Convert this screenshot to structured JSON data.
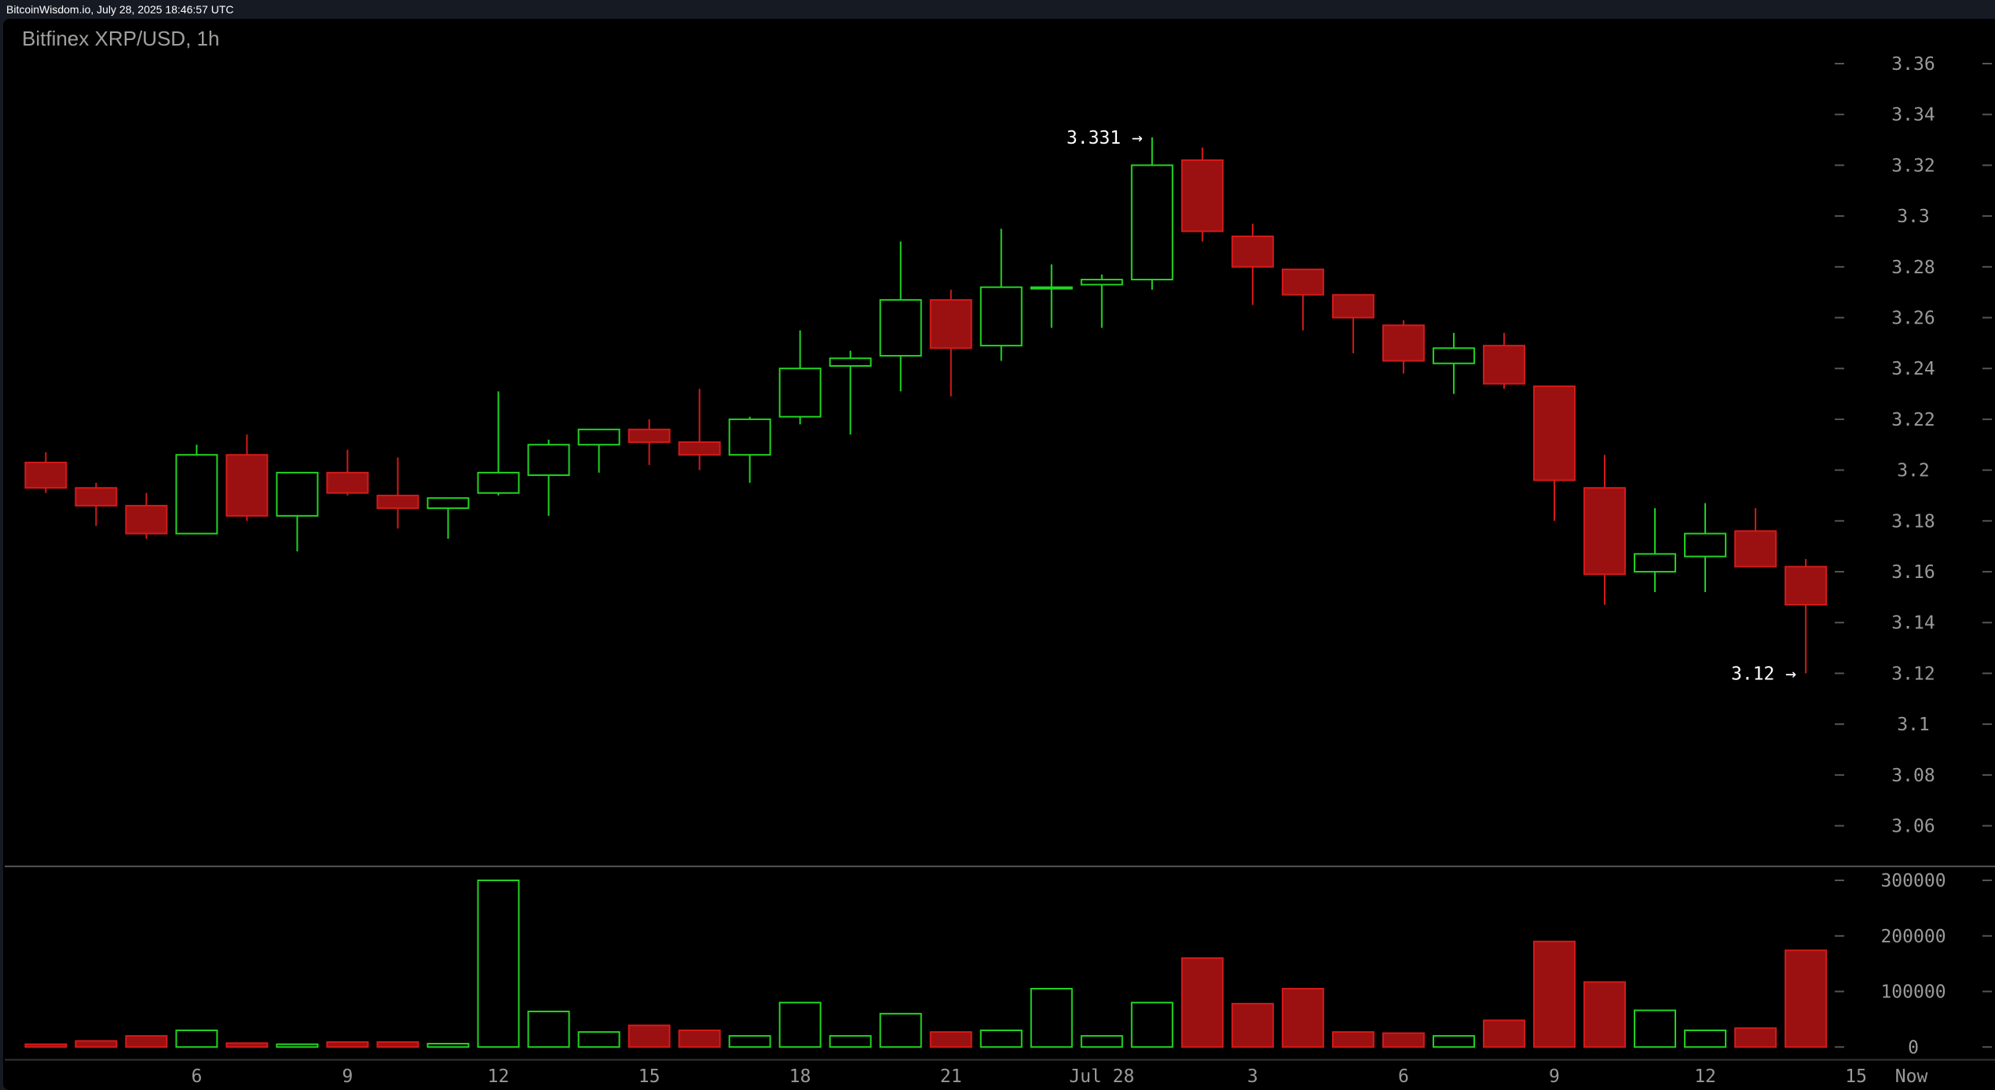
{
  "header": {
    "timestamp": "BitcoinWisdom.io, July 28, 2025 18:46:57 UTC",
    "title": "Bitfinex XRP/USD, 1h"
  },
  "colors": {
    "up": "#22d422",
    "down": "#d41a1a",
    "down_fill": "#9b1111",
    "background": "#000000",
    "axis_text": "#9a9a9a"
  },
  "chart_data": [
    {
      "type": "candlestick",
      "title": "Bitfinex XRP/USD, 1h",
      "ylim": [
        3.05,
        3.37
      ],
      "y_ticks": [
        "3.36",
        "3.34",
        "3.32",
        "3.3",
        "3.28",
        "3.26",
        "3.24",
        "3.22",
        "3.2",
        "3.18",
        "3.16",
        "3.14",
        "3.12",
        "3.1",
        "3.08",
        "3.06"
      ],
      "x_ticks": [
        {
          "label": "6",
          "index": 3
        },
        {
          "label": "9",
          "index": 6
        },
        {
          "label": "12",
          "index": 9
        },
        {
          "label": "15",
          "index": 12
        },
        {
          "label": "18",
          "index": 15
        },
        {
          "label": "21",
          "index": 18
        },
        {
          "label": "Jul 28",
          "index": 21
        },
        {
          "label": "3",
          "index": 24
        },
        {
          "label": "6",
          "index": 27
        },
        {
          "label": "9",
          "index": 30
        },
        {
          "label": "12",
          "index": 33
        },
        {
          "label": "15",
          "index": 36
        },
        {
          "label": "Now",
          "index": 37.1
        }
      ],
      "annotations": [
        {
          "label": "3.331 →",
          "index": 22,
          "price": 3.331
        },
        {
          "label": "3.12 →",
          "index": 35,
          "price": 3.12
        }
      ],
      "candles": [
        [
          3.203,
          3.207,
          3.191,
          3.193
        ],
        [
          3.193,
          3.195,
          3.178,
          3.186
        ],
        [
          3.186,
          3.191,
          3.173,
          3.175
        ],
        [
          3.175,
          3.21,
          3.175,
          3.206
        ],
        [
          3.206,
          3.214,
          3.18,
          3.182
        ],
        [
          3.182,
          3.199,
          3.168,
          3.199
        ],
        [
          3.199,
          3.208,
          3.19,
          3.191
        ],
        [
          3.19,
          3.205,
          3.177,
          3.185
        ],
        [
          3.185,
          3.189,
          3.173,
          3.189
        ],
        [
          3.191,
          3.231,
          3.19,
          3.199
        ],
        [
          3.198,
          3.212,
          3.182,
          3.21
        ],
        [
          3.21,
          3.216,
          3.199,
          3.216
        ],
        [
          3.216,
          3.22,
          3.202,
          3.211
        ],
        [
          3.211,
          3.232,
          3.2,
          3.206
        ],
        [
          3.206,
          3.221,
          3.195,
          3.22
        ],
        [
          3.221,
          3.255,
          3.218,
          3.24
        ],
        [
          3.241,
          3.247,
          3.214,
          3.244
        ],
        [
          3.245,
          3.29,
          3.231,
          3.267
        ],
        [
          3.267,
          3.271,
          3.229,
          3.248
        ],
        [
          3.249,
          3.295,
          3.243,
          3.272
        ],
        [
          3.272,
          3.281,
          3.256,
          3.272
        ],
        [
          3.273,
          3.277,
          3.256,
          3.275
        ],
        [
          3.275,
          3.331,
          3.271,
          3.32
        ],
        [
          3.322,
          3.327,
          3.29,
          3.294
        ],
        [
          3.292,
          3.297,
          3.265,
          3.28
        ],
        [
          3.279,
          3.279,
          3.255,
          3.269
        ],
        [
          3.269,
          3.269,
          3.246,
          3.26
        ],
        [
          3.257,
          3.259,
          3.238,
          3.243
        ],
        [
          3.242,
          3.254,
          3.23,
          3.248
        ],
        [
          3.249,
          3.254,
          3.232,
          3.234
        ],
        [
          3.233,
          3.233,
          3.18,
          3.196
        ],
        [
          3.193,
          3.206,
          3.147,
          3.159
        ],
        [
          3.16,
          3.185,
          3.152,
          3.167
        ],
        [
          3.166,
          3.187,
          3.152,
          3.175
        ],
        [
          3.176,
          3.185,
          3.162,
          3.162
        ],
        [
          3.162,
          3.165,
          3.12,
          3.147
        ]
      ]
    },
    {
      "type": "bar",
      "ylim": [
        0,
        320000
      ],
      "y_ticks": [
        "300000",
        "200000",
        "100000",
        "0"
      ],
      "values": [
        5000,
        11000,
        20000,
        30000,
        7000,
        5000,
        9000,
        9000,
        6000,
        300000,
        64000,
        27000,
        39000,
        30000,
        20000,
        80000,
        20000,
        60000,
        27000,
        30000,
        105000,
        20000,
        80000,
        160000,
        78000,
        105000,
        27000,
        25000,
        20000,
        48000,
        190000,
        117000,
        66000,
        30000,
        34000,
        174000
      ]
    }
  ]
}
